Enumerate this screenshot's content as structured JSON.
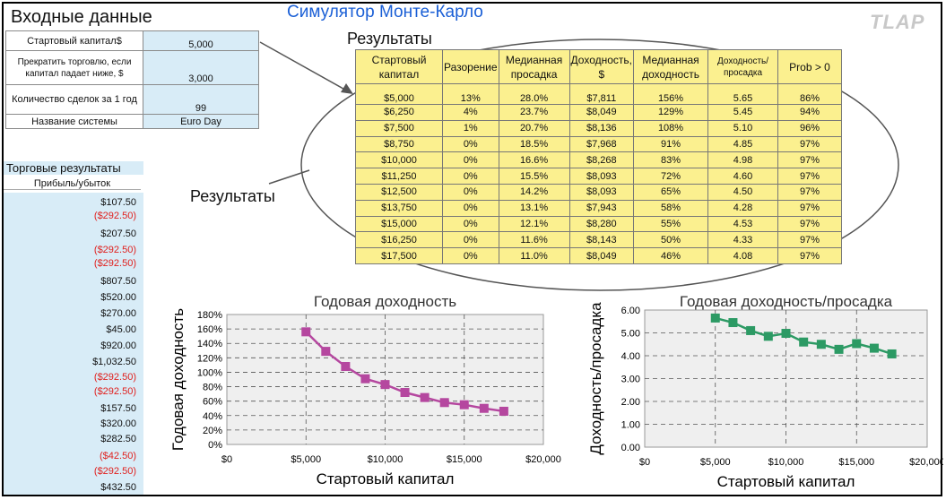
{
  "header": {
    "title": "Симулятор Монте-Карло",
    "logo": "TLAP"
  },
  "inputs": {
    "title": "Входные данные",
    "rows": [
      {
        "label": "Стартовый капитал$",
        "value": "5,000"
      },
      {
        "label": "Прекратить торговлю, если капитал падает ниже, $",
        "value": "3,000"
      },
      {
        "label": "Количество сделок за 1 год",
        "value": "99"
      },
      {
        "label": "Название системы",
        "value": "Euro Day"
      }
    ]
  },
  "results": {
    "title": "Результаты",
    "side_label": "Результаты",
    "headers": [
      "Стартовый капитал",
      "Разорение",
      "Медианная просадка",
      "Доходность, $",
      "Медианная доходность",
      "Доходность/ просадка",
      "Prob > 0"
    ],
    "rows": [
      [
        "$5,000",
        "13%",
        "28.0%",
        "$7,811",
        "156%",
        "5.65",
        "86%"
      ],
      [
        "$6,250",
        "4%",
        "23.7%",
        "$8,049",
        "129%",
        "5.45",
        "94%"
      ],
      [
        "$7,500",
        "1%",
        "20.7%",
        "$8,136",
        "108%",
        "5.10",
        "96%"
      ],
      [
        "$8,750",
        "0%",
        "18.5%",
        "$7,968",
        "91%",
        "4.85",
        "97%"
      ],
      [
        "$10,000",
        "0%",
        "16.6%",
        "$8,268",
        "83%",
        "4.98",
        "97%"
      ],
      [
        "$11,250",
        "0%",
        "15.5%",
        "$8,093",
        "72%",
        "4.60",
        "97%"
      ],
      [
        "$12,500",
        "0%",
        "14.2%",
        "$8,093",
        "65%",
        "4.50",
        "97%"
      ],
      [
        "$13,750",
        "0%",
        "13.1%",
        "$7,943",
        "58%",
        "4.28",
        "97%"
      ],
      [
        "$15,000",
        "0%",
        "12.1%",
        "$8,280",
        "55%",
        "4.53",
        "97%"
      ],
      [
        "$16,250",
        "0%",
        "11.6%",
        "$8,143",
        "50%",
        "4.33",
        "97%"
      ],
      [
        "$17,500",
        "0%",
        "11.0%",
        "$8,049",
        "46%",
        "4.08",
        "97%"
      ]
    ]
  },
  "trades": {
    "title": "Торговые результаты",
    "subtitle": "Прибыль/убыток",
    "values": [
      "$107.50",
      "($292.50)",
      "$207.50",
      "($292.50)",
      "($292.50)",
      "$807.50",
      "$520.00",
      "$270.00",
      "$45.00",
      "$920.00",
      "$1,032.50",
      "($292.50)",
      "($292.50)",
      "$157.50",
      "$320.00",
      "$282.50",
      "($42.50)",
      "($292.50)",
      "$432.50"
    ]
  },
  "colors": {
    "title_blue": "#1a5fd6",
    "input_bg": "#d8ecf7",
    "table_yellow": "#fbf08f",
    "negative": "#e0201e",
    "series1": "#b5479f",
    "series2": "#2c9a64"
  },
  "chart_data": [
    {
      "type": "line",
      "title": "Годовая доходность",
      "xlabel": "Стартовый капитал",
      "ylabel": "Годовая доходность",
      "x": [
        5000,
        6250,
        7500,
        8750,
        10000,
        11250,
        12500,
        13750,
        15000,
        16250,
        17500
      ],
      "series": [
        {
          "values": [
            156,
            129,
            108,
            91,
            83,
            72,
            65,
            58,
            55,
            50,
            46
          ]
        }
      ],
      "xlim": [
        0,
        20000
      ],
      "ylim": [
        0,
        180
      ],
      "xticks": [
        "$0",
        "$5,000",
        "$10,000",
        "$15,000",
        "$20,000"
      ],
      "yticks": [
        "0%",
        "20%",
        "40%",
        "60%",
        "80%",
        "100%",
        "120%",
        "140%",
        "160%",
        "180%"
      ],
      "grid": true,
      "marker": "square",
      "color": "#b5479f"
    },
    {
      "type": "line",
      "title": "Годовая доходность/просадка",
      "xlabel": "Стартовый капитал",
      "ylabel": "Доходность/просадка",
      "x": [
        5000,
        6250,
        7500,
        8750,
        10000,
        11250,
        12500,
        13750,
        15000,
        16250,
        17500
      ],
      "series": [
        {
          "values": [
            5.65,
            5.45,
            5.1,
            4.85,
            4.98,
            4.6,
            4.5,
            4.28,
            4.53,
            4.33,
            4.08
          ]
        }
      ],
      "xlim": [
        0,
        20000
      ],
      "ylim": [
        0,
        6
      ],
      "xticks": [
        "$0",
        "$5,000",
        "$10,000",
        "$15,000",
        "$20,000"
      ],
      "yticks": [
        "0.00",
        "1.00",
        "2.00",
        "3.00",
        "4.00",
        "5.00",
        "6.00"
      ],
      "grid": true,
      "marker": "square",
      "color": "#2c9a64"
    }
  ]
}
